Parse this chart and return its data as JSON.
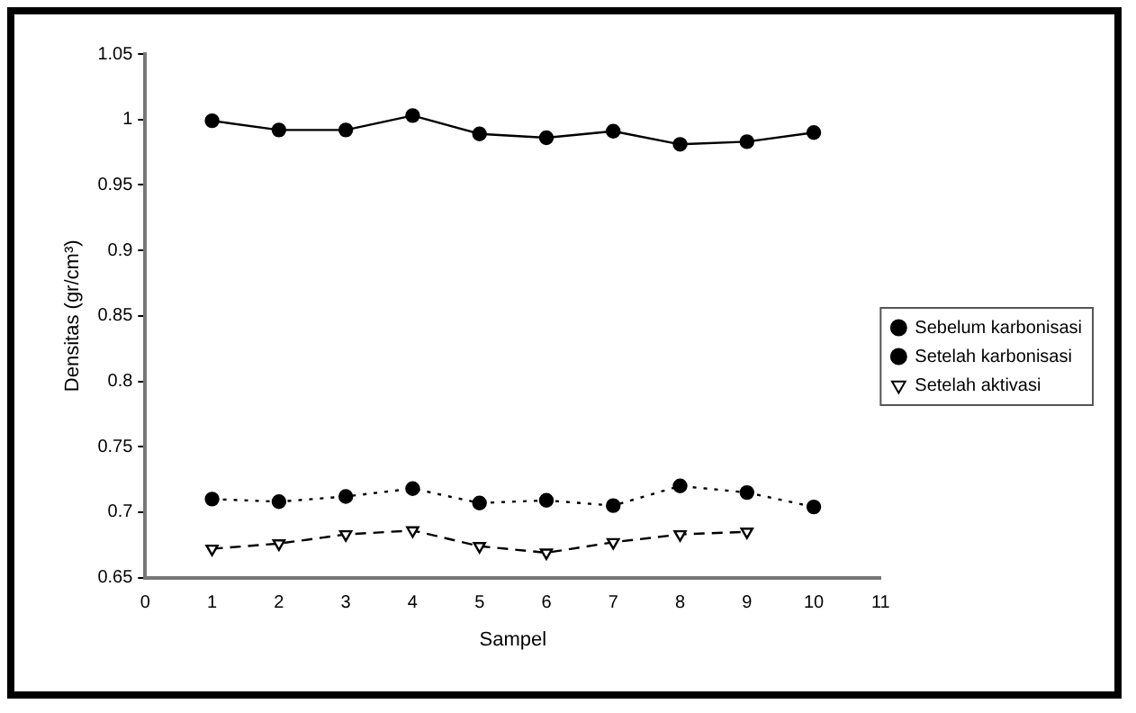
{
  "chart_data": {
    "type": "line",
    "xlabel": "Sampel",
    "ylabel": "Densitas (gr/cm³)",
    "xlim": [
      0,
      11
    ],
    "xticks": [
      0,
      1,
      2,
      3,
      4,
      5,
      6,
      7,
      8,
      9,
      10,
      11
    ],
    "ylim": [
      0.65,
      1.05
    ],
    "yticks": [
      0.65,
      0.7,
      0.75,
      0.8,
      0.85,
      0.9,
      0.95,
      1.0,
      1.05
    ],
    "grid": false,
    "legend": "right",
    "series": [
      {
        "name": "Sebelum karbonisasi",
        "color": "#000000",
        "marker": "circle",
        "line_style": "solid",
        "x": [
          1,
          2,
          3,
          4,
          5,
          6,
          7,
          8,
          9,
          10
        ],
        "values": [
          0.999,
          0.992,
          0.992,
          1.003,
          0.989,
          0.986,
          0.991,
          0.981,
          0.983,
          0.99
        ]
      },
      {
        "name": "Setelah karbonisasi",
        "color": "#000000",
        "marker": "circle",
        "line_style": "dotted",
        "x": [
          1,
          2,
          3,
          4,
          5,
          6,
          7,
          8,
          9,
          10
        ],
        "values": [
          0.71,
          0.708,
          0.712,
          0.718,
          0.707,
          0.709,
          0.705,
          0.72,
          0.715,
          0.704
        ]
      },
      {
        "name": "Setelah aktivasi",
        "color": "#000000",
        "marker": "triangle",
        "line_style": "dashed",
        "x": [
          1,
          2,
          3,
          4,
          5,
          6,
          7,
          8,
          9
        ],
        "values": [
          0.672,
          0.676,
          0.683,
          0.686,
          0.674,
          0.669,
          0.677,
          0.683,
          0.685
        ]
      }
    ]
  }
}
